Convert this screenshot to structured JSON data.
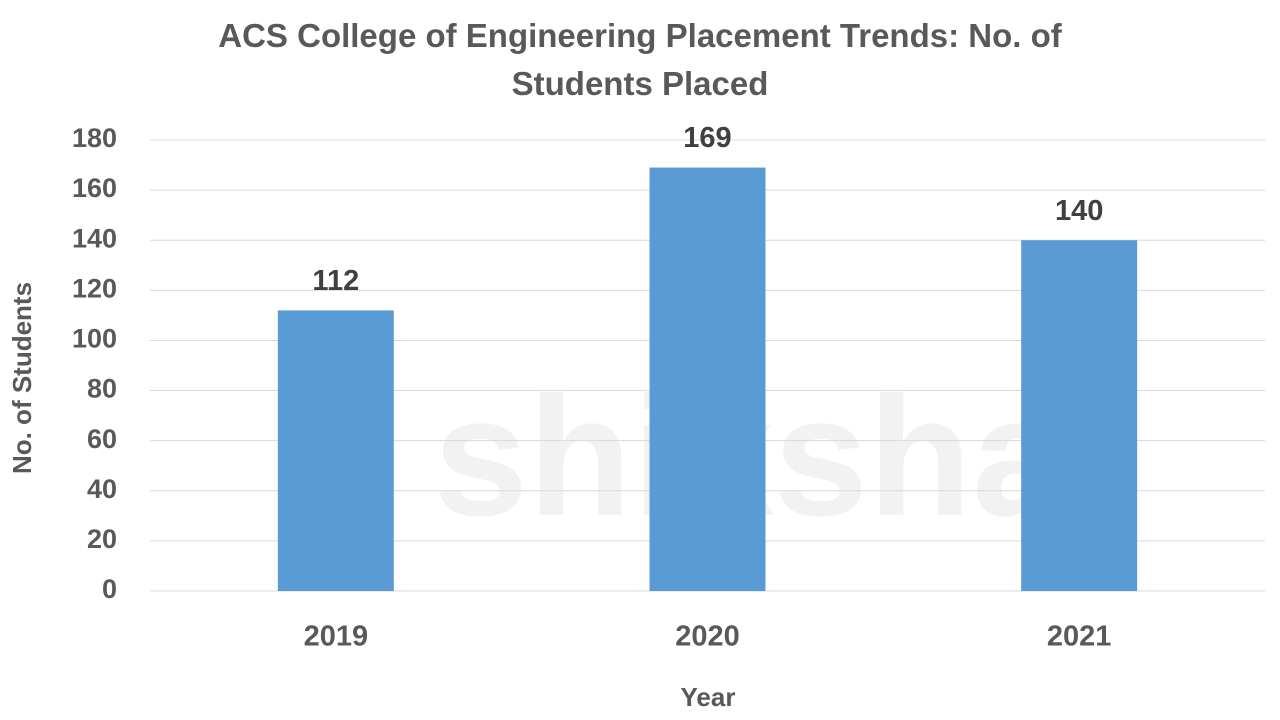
{
  "chart_data": {
    "type": "bar",
    "title": "ACS College of Engineering Placement Trends: No. of Students Placed",
    "x_label": "Year",
    "y_label": "No. of Students",
    "watermark": "shiksha",
    "categories": [
      "2019",
      "2020",
      "2021"
    ],
    "values": [
      112,
      169,
      140
    ],
    "color": "#5b9bd5",
    "ylim": [
      0,
      180
    ],
    "yticks": [
      0,
      20,
      40,
      60,
      80,
      100,
      120,
      140,
      160,
      180
    ],
    "grid": true
  }
}
